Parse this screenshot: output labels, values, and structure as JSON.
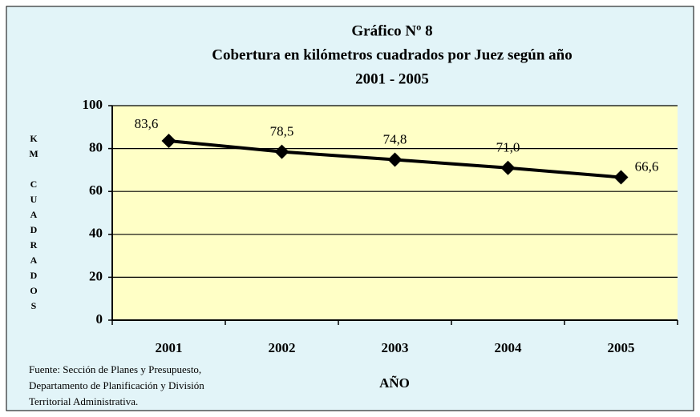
{
  "chart_data": {
    "type": "line",
    "title": [
      "Gráfico Nº 8",
      "Cobertura en kilómetros cuadrados por Juez según año",
      "2001 - 2005"
    ],
    "y_label": "KM CUADRADOS",
    "x_label": "AÑO",
    "categories": [
      "2001",
      "2002",
      "2003",
      "2004",
      "2005"
    ],
    "series": [
      {
        "name": "KM CUADRADOS",
        "color": "#000000",
        "values": [
          83.6,
          78.5,
          74.8,
          71.0,
          66.6
        ],
        "value_labels": [
          "83,6",
          "78,5",
          "74,8",
          "71,0",
          "66,6"
        ]
      }
    ],
    "ylim": [
      0,
      100
    ],
    "yticks": [
      0,
      20,
      40,
      60,
      80,
      100
    ],
    "grid": true,
    "source": [
      "Fuente: Sección de Planes y Presupuesto,",
      "Departamento  de Planificación  y División",
      "Territorial Administrativa."
    ]
  }
}
